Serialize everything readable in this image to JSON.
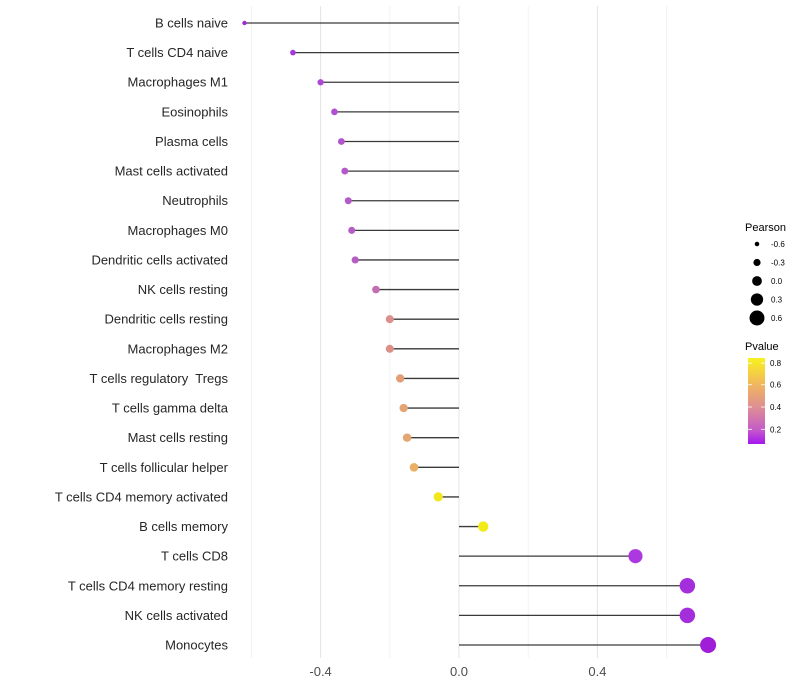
{
  "chart_data": {
    "type": "scatter",
    "subtype": "lollipop-horizontal",
    "title": "",
    "xlabel": "",
    "ylabel": "",
    "xlim": [
      -0.69,
      0.78
    ],
    "x_tick_values": [
      -0.4,
      0.0,
      0.4
    ],
    "x_tick_labels": [
      "-0.4",
      "0.0",
      "0.4"
    ],
    "x_minor_gridlines": [
      -0.6,
      -0.2,
      0.2,
      0.6
    ],
    "grid": "vertical-only",
    "legend_position": "right",
    "points": [
      {
        "label": "B cells naive",
        "pearson": -0.62,
        "pvalue": 0.05,
        "color": "#9C2BD6"
      },
      {
        "label": "T cells CD4 naive",
        "pearson": -0.48,
        "pvalue": 0.08,
        "color": "#A43ADC"
      },
      {
        "label": "Macrophages M1",
        "pearson": -0.4,
        "pvalue": 0.12,
        "color": "#AC49D4"
      },
      {
        "label": "Eosinophils",
        "pearson": -0.36,
        "pvalue": 0.15,
        "color": "#B050D0"
      },
      {
        "label": "Plasma cells",
        "pearson": -0.34,
        "pvalue": 0.17,
        "color": "#B254CD"
      },
      {
        "label": "Mast cells activated",
        "pearson": -0.33,
        "pvalue": 0.18,
        "color": "#B458CA"
      },
      {
        "label": "Neutrophils",
        "pearson": -0.32,
        "pvalue": 0.19,
        "color": "#B55AC9"
      },
      {
        "label": "Macrophages M0",
        "pearson": -0.31,
        "pvalue": 0.2,
        "color": "#B65CC7"
      },
      {
        "label": "Dendritic cells activated",
        "pearson": -0.3,
        "pvalue": 0.21,
        "color": "#B75EC5"
      },
      {
        "label": "NK cells resting",
        "pearson": -0.24,
        "pvalue": 0.28,
        "color": "#C26FB2"
      },
      {
        "label": "Dendritic cells resting",
        "pearson": -0.2,
        "pvalue": 0.4,
        "color": "#DC8F8C"
      },
      {
        "label": "Macrophages M2",
        "pearson": -0.2,
        "pvalue": 0.4,
        "color": "#DD9088"
      },
      {
        "label": "T cells regulatory  Tregs",
        "pearson": -0.17,
        "pvalue": 0.46,
        "color": "#E39E78"
      },
      {
        "label": "T cells gamma delta",
        "pearson": -0.16,
        "pvalue": 0.49,
        "color": "#E5A473"
      },
      {
        "label": "Mast cells resting",
        "pearson": -0.15,
        "pvalue": 0.5,
        "color": "#E6A670"
      },
      {
        "label": "T cells follicular helper",
        "pearson": -0.13,
        "pvalue": 0.56,
        "color": "#EAB065"
      },
      {
        "label": "T cells CD4 memory activated",
        "pearson": -0.06,
        "pvalue": 0.8,
        "color": "#F2E71B"
      },
      {
        "label": "B cells memory",
        "pearson": 0.07,
        "pvalue": 0.78,
        "color": "#F3EB17"
      },
      {
        "label": "T cells CD8",
        "pearson": 0.51,
        "pvalue": 0.03,
        "color": "#AC38DF"
      },
      {
        "label": "T cells CD4 memory resting",
        "pearson": 0.66,
        "pvalue": 0.01,
        "color": "#A52EDC"
      },
      {
        "label": "NK cells activated",
        "pearson": 0.66,
        "pvalue": 0.01,
        "color": "#A52EDC"
      },
      {
        "label": "Monocytes",
        "pearson": 0.72,
        "pvalue": 0.005,
        "color": "#A01ED8"
      }
    ],
    "legend_size": {
      "title": "Pearson",
      "values": [
        -0.6,
        -0.3,
        0.0,
        0.3,
        0.6
      ],
      "labels": [
        "-0.6",
        "-0.3",
        "0.0",
        "0.3",
        "0.6"
      ],
      "dot_color": "#000000"
    },
    "legend_color": {
      "title": "Pvalue",
      "tick_labels": [
        "0.8",
        "0.6",
        "0.4",
        "0.2"
      ],
      "tick_offsets": [
        0.06,
        0.31,
        0.57,
        0.83
      ],
      "gradient": [
        {
          "offset": "0%",
          "color": "#F8F21F"
        },
        {
          "offset": "31%",
          "color": "#F1B55E"
        },
        {
          "offset": "57%",
          "color": "#DE8F93"
        },
        {
          "offset": "83%",
          "color": "#C55CC8"
        },
        {
          "offset": "100%",
          "color": "#A517F0"
        }
      ]
    }
  },
  "colors": {
    "background": "#ffffff",
    "stem": "#3a3a3a",
    "gridline_major": "#e4e4e4",
    "gridline_minor": "#f2f2f2",
    "axis_text": "#4d4d4d",
    "y_label_text": "#262626"
  }
}
